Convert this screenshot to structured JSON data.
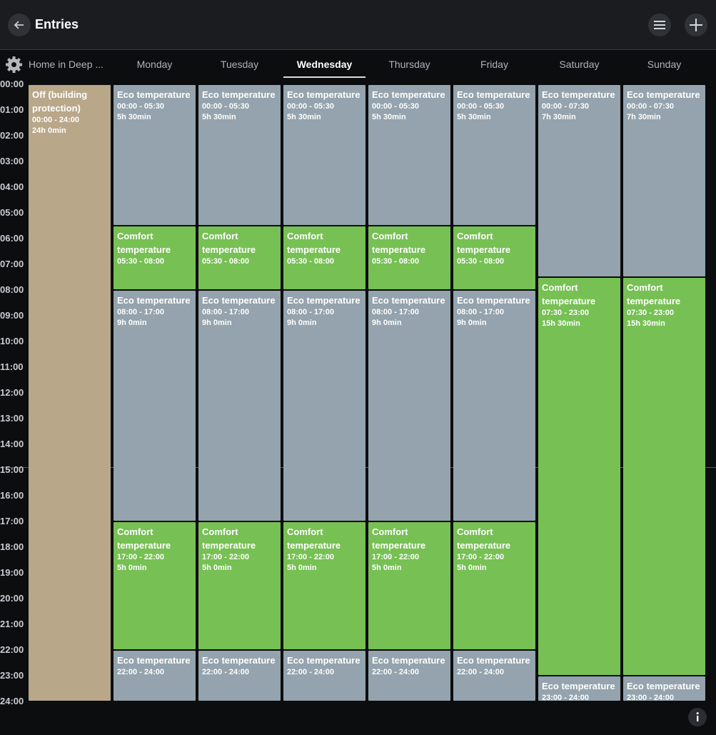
{
  "header": {
    "title": "Entries"
  },
  "tabs": [
    {
      "label": "Home in Deep ..."
    },
    {
      "label": "Monday"
    },
    {
      "label": "Tuesday"
    },
    {
      "label": "Wednesday",
      "selected": true
    },
    {
      "label": "Thursday"
    },
    {
      "label": "Friday"
    },
    {
      "label": "Saturday"
    },
    {
      "label": "Sunday"
    }
  ],
  "hours": [
    "00:00",
    "01:00",
    "02:00",
    "03:00",
    "04:00",
    "05:00",
    "06:00",
    "07:00",
    "08:00",
    "09:00",
    "10:00",
    "11:00",
    "12:00",
    "13:00",
    "14:00",
    "15:00",
    "16:00",
    "17:00",
    "18:00",
    "19:00",
    "20:00",
    "21:00",
    "22:00",
    "23:00",
    "24:00"
  ],
  "columns": [
    {
      "entries": [
        {
          "title": "Off (building protection)",
          "range": "00:00 - 24:00",
          "duration": "24h 0min",
          "color": "#b9a78a"
        }
      ]
    },
    {
      "entries": [
        {
          "title": "Eco temperature",
          "range": "00:00 - 05:30",
          "duration": "5h 30min",
          "color": "#94a3ad"
        },
        {
          "title": "Comfort temperature",
          "range": "05:30 - 08:00",
          "color": "#77c054"
        },
        {
          "title": "Eco temperature",
          "range": "08:00 - 17:00",
          "duration": "9h 0min",
          "color": "#94a3ad"
        },
        {
          "title": "Comfort temperature",
          "range": "17:00 - 22:00",
          "duration": "5h 0min",
          "color": "#77c054"
        },
        {
          "title": "Eco temperature",
          "range": "22:00 - 24:00",
          "color": "#94a3ad"
        }
      ]
    },
    {
      "entries": [
        {
          "title": "Eco temperature",
          "range": "00:00 - 05:30",
          "duration": "5h 30min",
          "color": "#94a3ad"
        },
        {
          "title": "Comfort temperature",
          "range": "05:30 - 08:00",
          "color": "#77c054"
        },
        {
          "title": "Eco temperature",
          "range": "08:00 - 17:00",
          "duration": "9h 0min",
          "color": "#94a3ad"
        },
        {
          "title": "Comfort temperature",
          "range": "17:00 - 22:00",
          "duration": "5h 0min",
          "color": "#77c054"
        },
        {
          "title": "Eco temperature",
          "range": "22:00 - 24:00",
          "color": "#94a3ad"
        }
      ]
    },
    {
      "entries": [
        {
          "title": "Eco temperature",
          "range": "00:00 - 05:30",
          "duration": "5h 30min",
          "color": "#94a3ad"
        },
        {
          "title": "Comfort temperature",
          "range": "05:30 - 08:00",
          "color": "#77c054"
        },
        {
          "title": "Eco temperature",
          "range": "08:00 - 17:00",
          "duration": "9h 0min",
          "color": "#94a3ad"
        },
        {
          "title": "Comfort temperature",
          "range": "17:00 - 22:00",
          "duration": "5h 0min",
          "color": "#77c054"
        },
        {
          "title": "Eco temperature",
          "range": "22:00 - 24:00",
          "color": "#94a3ad"
        }
      ]
    },
    {
      "entries": [
        {
          "title": "Eco temperature",
          "range": "00:00 - 05:30",
          "duration": "5h 30min",
          "color": "#94a3ad"
        },
        {
          "title": "Comfort temperature",
          "range": "05:30 - 08:00",
          "color": "#77c054"
        },
        {
          "title": "Eco temperature",
          "range": "08:00 - 17:00",
          "duration": "9h 0min",
          "color": "#94a3ad"
        },
        {
          "title": "Comfort temperature",
          "range": "17:00 - 22:00",
          "duration": "5h 0min",
          "color": "#77c054"
        },
        {
          "title": "Eco temperature",
          "range": "22:00 - 24:00",
          "color": "#94a3ad"
        }
      ]
    },
    {
      "entries": [
        {
          "title": "Eco temperature",
          "range": "00:00 - 05:30",
          "duration": "5h 30min",
          "color": "#94a3ad"
        },
        {
          "title": "Comfort temperature",
          "range": "05:30 - 08:00",
          "color": "#77c054"
        },
        {
          "title": "Eco temperature",
          "range": "08:00 - 17:00",
          "duration": "9h 0min",
          "color": "#94a3ad"
        },
        {
          "title": "Comfort temperature",
          "range": "17:00 - 22:00",
          "duration": "5h 0min",
          "color": "#77c054"
        },
        {
          "title": "Eco temperature",
          "range": "22:00 - 24:00",
          "color": "#94a3ad"
        }
      ]
    },
    {
      "entries": [
        {
          "title": "Eco temperature",
          "range": "00:00 - 07:30",
          "duration": "7h 30min",
          "color": "#94a3ad"
        },
        {
          "title": "Comfort temperature",
          "range": "07:30 - 23:00",
          "duration": "15h 30min",
          "color": "#77c054"
        },
        {
          "title": "Eco temperature",
          "range": "23:00 - 24:00",
          "color": "#94a3ad"
        }
      ]
    },
    {
      "entries": [
        {
          "title": "Eco temperature",
          "range": "00:00 - 07:30",
          "duration": "7h 30min",
          "color": "#94a3ad"
        },
        {
          "title": "Comfort temperature",
          "range": "07:30 - 23:00",
          "duration": "15h 30min",
          "color": "#77c054"
        },
        {
          "title": "Eco temperature",
          "range": "23:00 - 24:00",
          "color": "#94a3ad"
        }
      ]
    }
  ]
}
